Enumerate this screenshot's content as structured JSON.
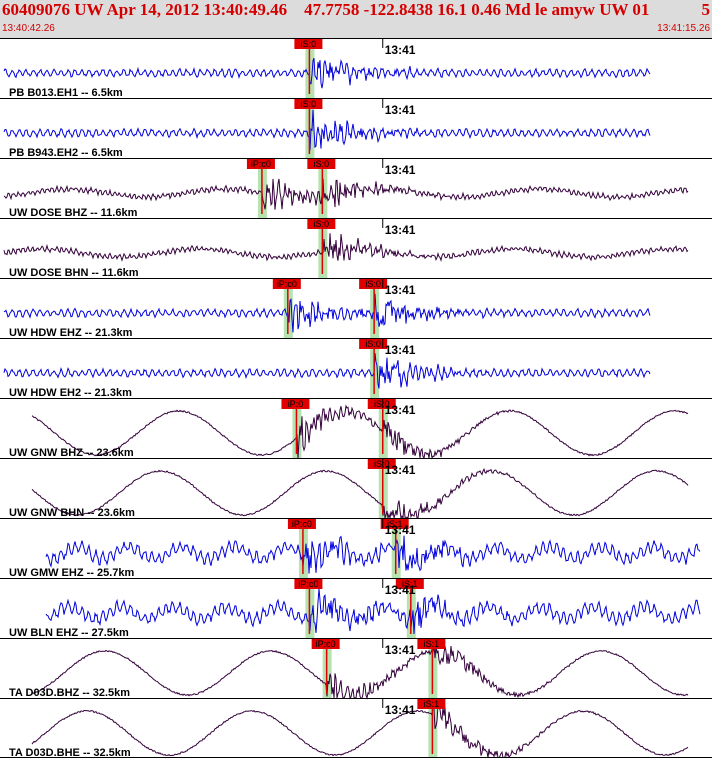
{
  "header": {
    "title": "60409076 UW Apr 14, 2012 13:40:49.46    47.7758 -122.8438 16.1 0.46 Md le amyw UW 01",
    "event_code": "5",
    "start_time": "13:40:42.26",
    "end_time": "13:41:15.26"
  },
  "chart_data": {
    "type": "seismogram",
    "x_range": [
      "13:40:42.26",
      "13:41:15.26"
    ],
    "minute_tick": "13:41",
    "traces": [
      {
        "label": "PB B013.EH1 -- 6.5km",
        "color": "#0000dd",
        "picks": [
          {
            "phase": "iS:0",
            "time": "13:40:56.6"
          }
        ],
        "wave": "noise"
      },
      {
        "label": "PB B943.EH2 -- 6.5km",
        "color": "#0000dd",
        "picks": [
          {
            "phase": "iS:0",
            "time": "13:40:56.6"
          }
        ],
        "wave": "noise"
      },
      {
        "label": "UW DOSE BHZ -- 11.6km",
        "color": "#33003a",
        "picks": [
          {
            "phase": "iP:c0",
            "time": "13:40:54.4"
          },
          {
            "phase": "iS:0",
            "time": "13:40:57.2"
          }
        ],
        "wave": "swell"
      },
      {
        "label": "UW DOSE BHN -- 11.6km",
        "color": "#33003a",
        "picks": [
          {
            "phase": "iS:0",
            "time": "13:40:57.2"
          }
        ],
        "wave": "swell"
      },
      {
        "label": "UW HDW EHZ -- 21.3km",
        "color": "#0000dd",
        "picks": [
          {
            "phase": "iP:c0",
            "time": "13:40:55.6"
          },
          {
            "phase": "iS:0",
            "time": "13:40:59.6"
          }
        ],
        "wave": "noise"
      },
      {
        "label": "UW HDW EH2 -- 21.3km",
        "color": "#0000dd",
        "picks": [
          {
            "phase": "iS:0",
            "time": "13:40:59.6"
          }
        ],
        "wave": "noise"
      },
      {
        "label": "UW GNW BHZ -- 23.6km",
        "color": "#33003a",
        "picks": [
          {
            "phase": "iP:0",
            "time": "13:40:56.0"
          },
          {
            "phase": "iS:0",
            "time": "13:41:00.0"
          }
        ],
        "wave": "long"
      },
      {
        "label": "UW GNW BHN -- 23.6km",
        "color": "#33003a",
        "picks": [
          {
            "phase": "iS:0",
            "time": "13:41:00.0"
          }
        ],
        "wave": "long"
      },
      {
        "label": "UW GMW EHZ -- 25.7km",
        "color": "#0000dd",
        "picks": [
          {
            "phase": "iP:c0",
            "time": "13:40:56.3"
          },
          {
            "phase": "iS:1",
            "time": "13:41:00.6"
          }
        ],
        "wave": "busy"
      },
      {
        "label": "UW BLN EHZ -- 27.5km",
        "color": "#0000dd",
        "picks": [
          {
            "phase": "iP:c0",
            "time": "13:40:56.6"
          },
          {
            "phase": "iS:1",
            "time": "13:41:01.3"
          }
        ],
        "wave": "busy"
      },
      {
        "label": "TA D03D.BHZ -- 32.5km",
        "color": "#33003a",
        "picks": [
          {
            "phase": "iP:c0",
            "time": "13:40:57.4"
          },
          {
            "phase": "iS:1",
            "time": "13:41:02.3"
          }
        ],
        "wave": "long"
      },
      {
        "label": "TA D03D.BHE -- 32.5km",
        "color": "#33003a",
        "picks": [
          {
            "phase": "iS:1",
            "time": "13:41:02.3"
          }
        ],
        "wave": "long"
      }
    ]
  }
}
